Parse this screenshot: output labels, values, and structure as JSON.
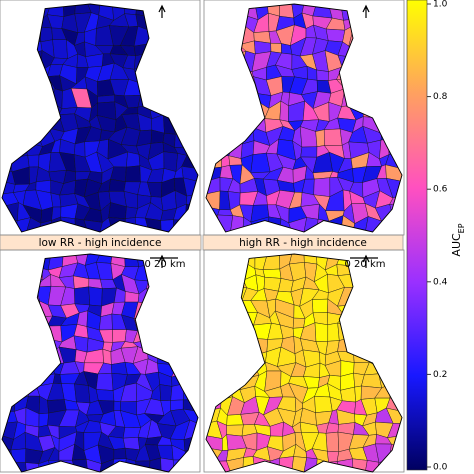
{
  "panels": [
    {
      "title": "low RR - high incidence",
      "scale_label": "0 20 km"
    },
    {
      "title": "high RR - high incidence",
      "scale_label": "0 20 km"
    }
  ],
  "colorbar": {
    "label": "AUC",
    "label_subscript": "EP",
    "ylim": [
      0,
      1
    ],
    "yticks": [
      {
        "value": 0,
        "label": "0.0"
      },
      {
        "value": 0.2,
        "label": "0.2"
      },
      {
        "value": 0.4,
        "label": "0.4"
      },
      {
        "value": 0.6,
        "label": "0.6"
      },
      {
        "value": 0.8,
        "label": "0.8"
      },
      {
        "value": 1,
        "label": "1.0"
      }
    ]
  }
}
